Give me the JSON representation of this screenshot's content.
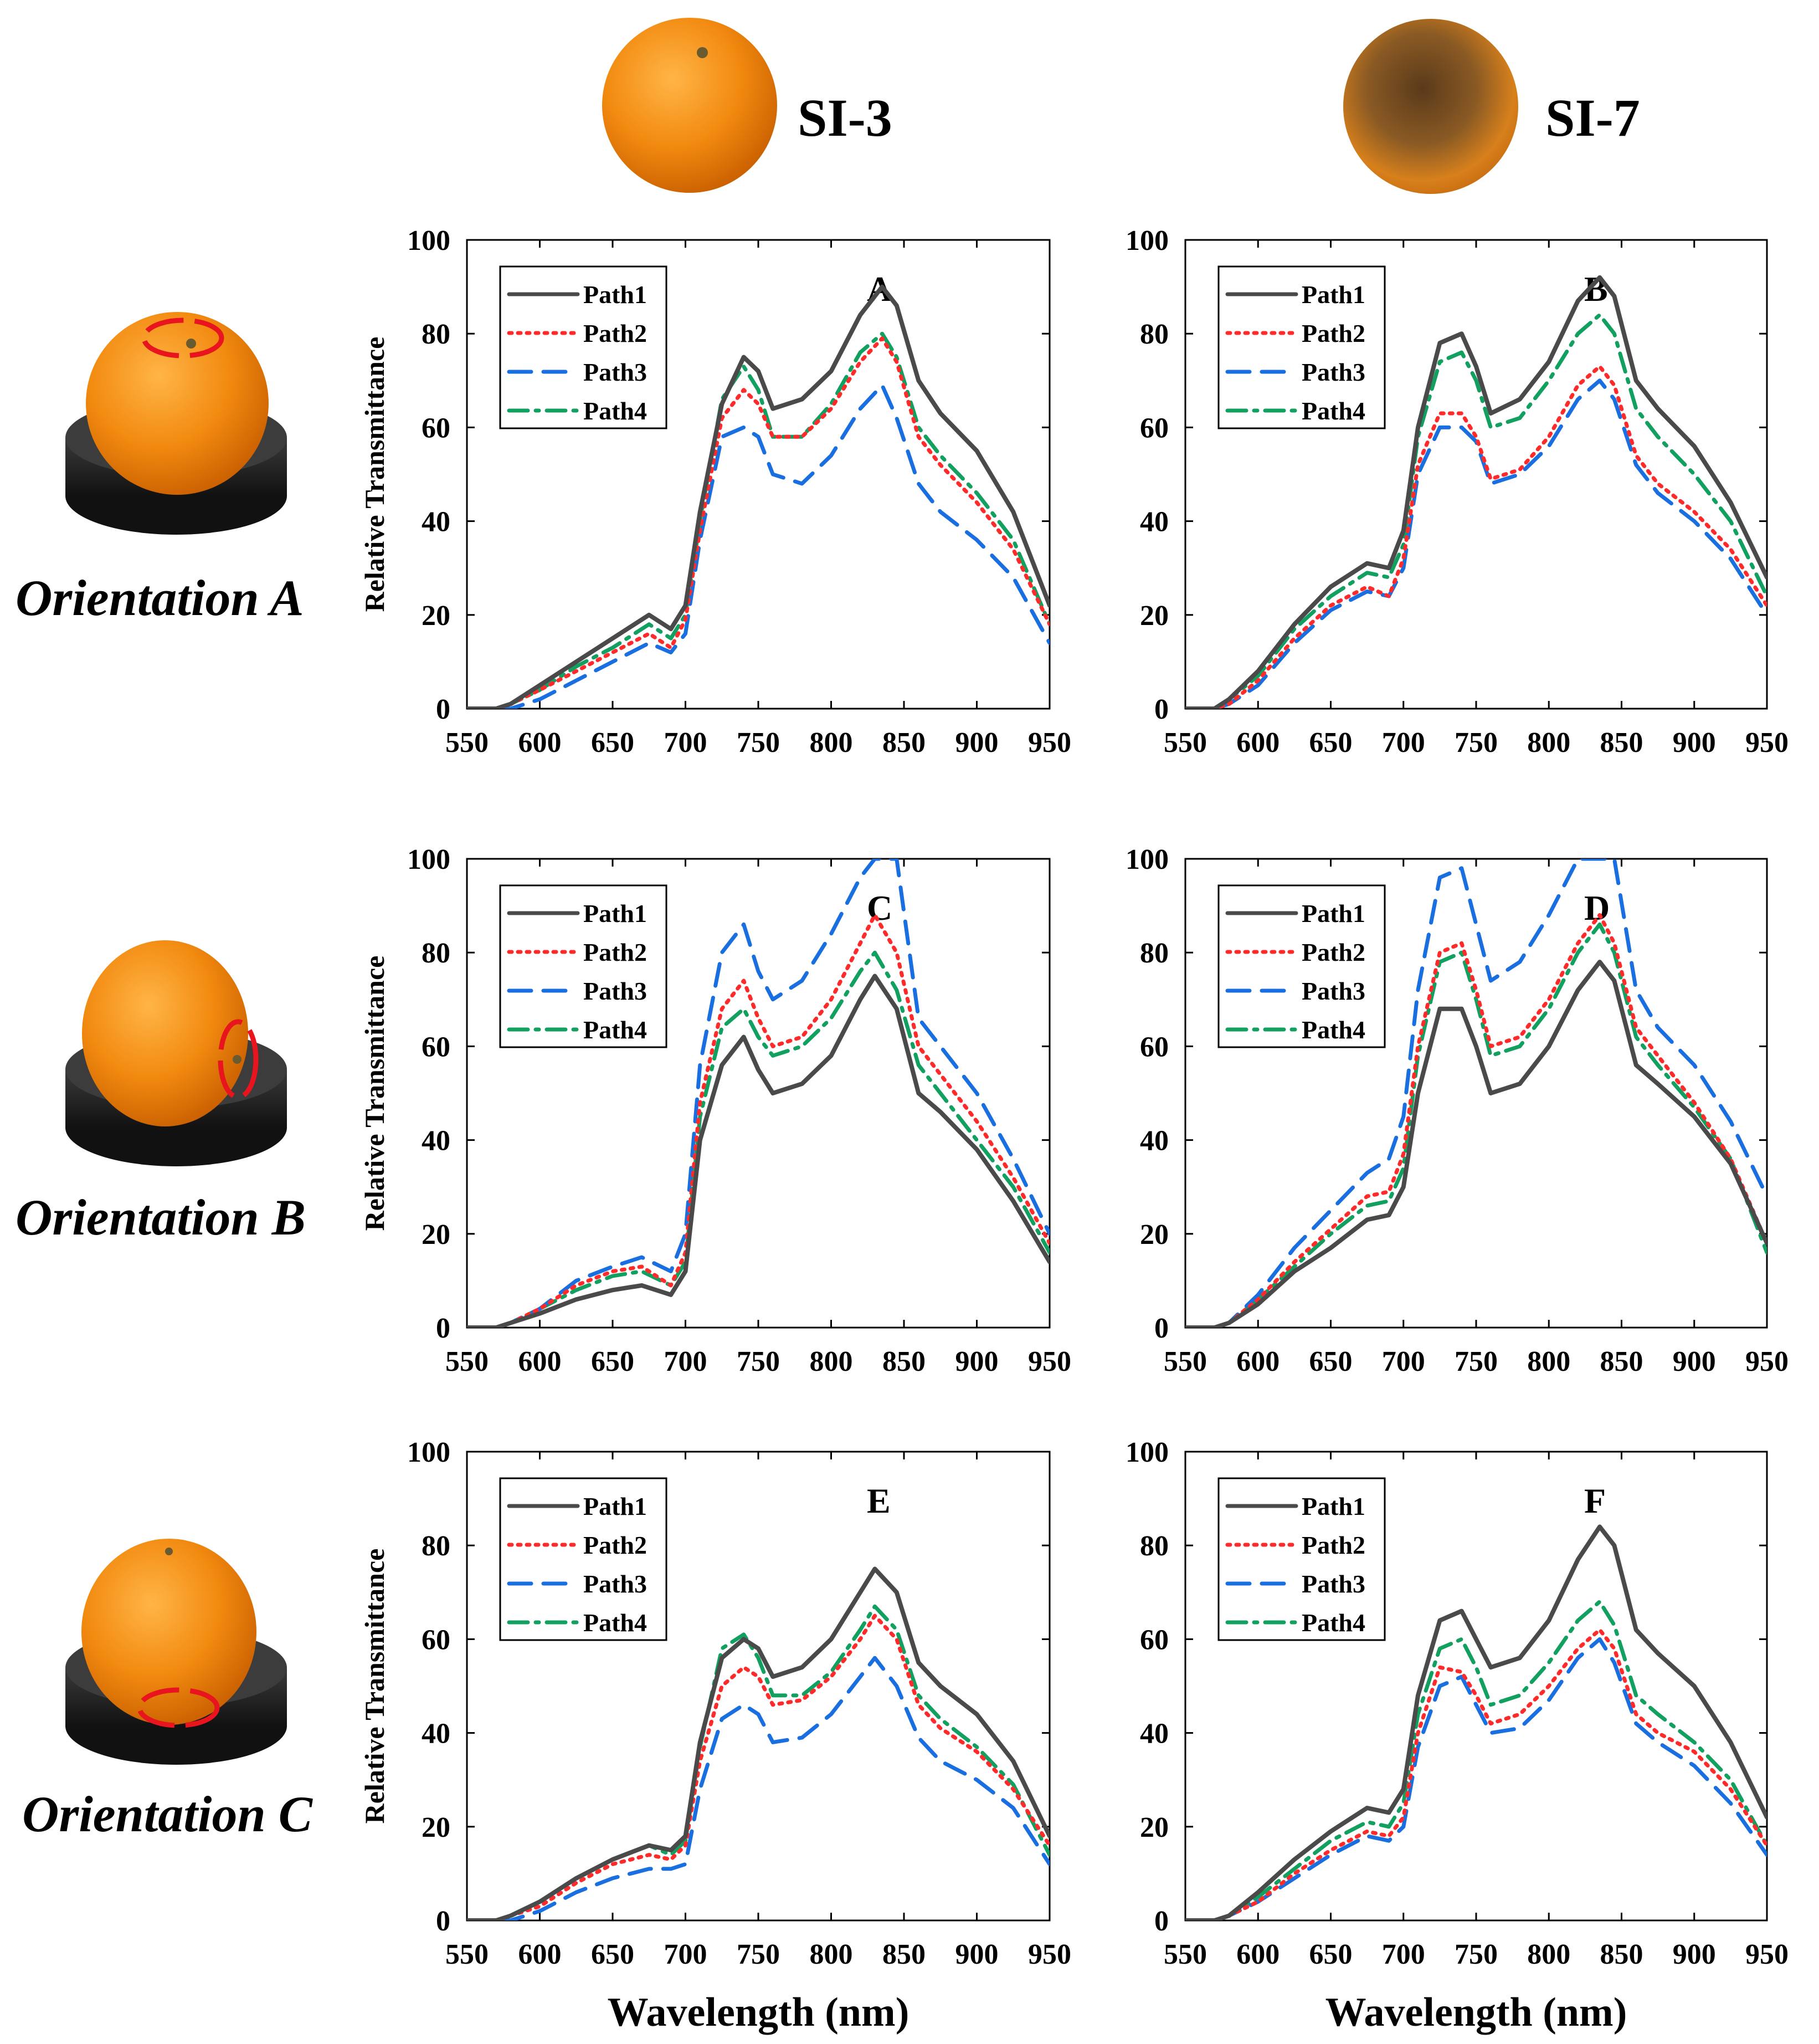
{
  "header": {
    "col1": "SI-3",
    "col2": "SI-7"
  },
  "orientations": [
    "Orientation A",
    "Orientation B",
    "Orientation C"
  ],
  "colors": {
    "Path1": "#4a4a4a",
    "Path2": "#ff2a2a",
    "Path3": "#1a6fe0",
    "Path4": "#12a060",
    "orange": "#f28a10",
    "stand": "#2b2b2b",
    "marker": "#e8141e"
  },
  "chart_data": [
    {
      "type": "line",
      "panel": "A",
      "xlabel": "",
      "ylabel": "Relative Transmittance",
      "xlim": [
        550,
        950
      ],
      "ylim": [
        0,
        100
      ],
      "xticks": [
        550,
        600,
        650,
        700,
        750,
        800,
        850,
        900,
        950
      ],
      "yticks": [
        0,
        20,
        40,
        60,
        80,
        100
      ],
      "legend": [
        "Path1",
        "Path2",
        "Path3",
        "Path4"
      ],
      "x": [
        550,
        570,
        580,
        600,
        625,
        650,
        675,
        690,
        700,
        710,
        725,
        740,
        750,
        760,
        780,
        800,
        820,
        835,
        845,
        860,
        875,
        900,
        925,
        950
      ],
      "series": [
        {
          "name": "Path1",
          "values": [
            0,
            0,
            1,
            5,
            10,
            15,
            20,
            17,
            22,
            42,
            65,
            75,
            72,
            64,
            66,
            72,
            84,
            90,
            86,
            70,
            63,
            55,
            42,
            22
          ]
        },
        {
          "name": "Path2",
          "values": [
            0,
            0,
            1,
            4,
            8,
            12,
            16,
            13,
            19,
            38,
            62,
            68,
            65,
            58,
            58,
            64,
            74,
            79,
            74,
            58,
            52,
            44,
            34,
            18
          ]
        },
        {
          "name": "Path3",
          "values": [
            0,
            0,
            0,
            2,
            6,
            10,
            14,
            12,
            16,
            36,
            58,
            60,
            58,
            50,
            48,
            54,
            64,
            69,
            62,
            48,
            42,
            36,
            28,
            14
          ]
        },
        {
          "name": "Path4",
          "values": [
            0,
            0,
            1,
            4,
            9,
            13,
            18,
            15,
            20,
            40,
            66,
            73,
            68,
            58,
            58,
            65,
            76,
            80,
            75,
            60,
            54,
            46,
            36,
            18
          ]
        }
      ]
    },
    {
      "type": "line",
      "panel": "B",
      "xlabel": "",
      "ylabel": "",
      "xlim": [
        550,
        950
      ],
      "ylim": [
        0,
        100
      ],
      "xticks": [
        550,
        600,
        650,
        700,
        750,
        800,
        850,
        900,
        950
      ],
      "yticks": [
        0,
        20,
        40,
        60,
        80,
        100
      ],
      "legend": [
        "Path1",
        "Path2",
        "Path3",
        "Path4"
      ],
      "x": [
        550,
        570,
        580,
        600,
        625,
        650,
        675,
        690,
        700,
        710,
        725,
        740,
        750,
        760,
        780,
        800,
        820,
        835,
        845,
        860,
        875,
        900,
        925,
        950
      ],
      "series": [
        {
          "name": "Path1",
          "values": [
            0,
            0,
            2,
            8,
            18,
            26,
            31,
            30,
            38,
            60,
            78,
            80,
            73,
            63,
            66,
            74,
            87,
            92,
            88,
            70,
            64,
            56,
            44,
            28
          ]
        },
        {
          "name": "Path2",
          "values": [
            0,
            0,
            1,
            6,
            15,
            22,
            26,
            24,
            32,
            52,
            63,
            63,
            58,
            49,
            51,
            58,
            69,
            73,
            69,
            54,
            48,
            42,
            34,
            22
          ]
        },
        {
          "name": "Path3",
          "values": [
            0,
            0,
            1,
            5,
            14,
            21,
            25,
            24,
            30,
            50,
            60,
            60,
            57,
            48,
            50,
            56,
            66,
            70,
            66,
            52,
            46,
            40,
            32,
            20
          ]
        },
        {
          "name": "Path4",
          "values": [
            0,
            0,
            2,
            7,
            17,
            24,
            29,
            28,
            35,
            58,
            74,
            76,
            70,
            60,
            62,
            70,
            80,
            84,
            80,
            64,
            58,
            50,
            40,
            24
          ]
        }
      ]
    },
    {
      "type": "line",
      "panel": "C",
      "xlabel": "",
      "ylabel": "Relative Transmittance",
      "xlim": [
        550,
        950
      ],
      "ylim": [
        0,
        100
      ],
      "xticks": [
        550,
        600,
        650,
        700,
        750,
        800,
        850,
        900,
        950
      ],
      "yticks": [
        0,
        20,
        40,
        60,
        80,
        100
      ],
      "legend": [
        "Path1",
        "Path2",
        "Path3",
        "Path4"
      ],
      "x": [
        550,
        570,
        580,
        600,
        625,
        650,
        670,
        690,
        700,
        710,
        725,
        740,
        750,
        760,
        780,
        800,
        820,
        830,
        845,
        860,
        875,
        900,
        925,
        950
      ],
      "series": [
        {
          "name": "Path1",
          "values": [
            0,
            0,
            1,
            3,
            6,
            8,
            9,
            7,
            12,
            40,
            56,
            62,
            55,
            50,
            52,
            58,
            70,
            75,
            68,
            50,
            46,
            38,
            27,
            14
          ]
        },
        {
          "name": "Path2",
          "values": [
            0,
            0,
            1,
            4,
            9,
            12,
            13,
            9,
            16,
            48,
            68,
            74,
            66,
            60,
            62,
            70,
            82,
            88,
            80,
            60,
            54,
            44,
            32,
            18
          ]
        },
        {
          "name": "Path3",
          "values": [
            0,
            0,
            1,
            4,
            10,
            13,
            15,
            12,
            20,
            56,
            80,
            86,
            76,
            70,
            74,
            84,
            96,
            100,
            100,
            66,
            60,
            50,
            36,
            20
          ]
        },
        {
          "name": "Path4",
          "values": [
            0,
            0,
            1,
            4,
            8,
            11,
            12,
            9,
            14,
            45,
            64,
            68,
            62,
            58,
            60,
            66,
            76,
            80,
            72,
            56,
            50,
            40,
            30,
            16
          ]
        }
      ]
    },
    {
      "type": "line",
      "panel": "D",
      "xlabel": "",
      "ylabel": "",
      "xlim": [
        550,
        950
      ],
      "ylim": [
        0,
        100
      ],
      "xticks": [
        550,
        600,
        650,
        700,
        750,
        800,
        850,
        900,
        950
      ],
      "yticks": [
        0,
        20,
        40,
        60,
        80,
        100
      ],
      "legend": [
        "Path1",
        "Path2",
        "Path3",
        "Path4"
      ],
      "x": [
        550,
        570,
        580,
        600,
        625,
        650,
        675,
        690,
        700,
        710,
        725,
        740,
        750,
        760,
        780,
        800,
        820,
        835,
        845,
        860,
        875,
        900,
        925,
        950
      ],
      "series": [
        {
          "name": "Path1",
          "values": [
            0,
            0,
            1,
            5,
            12,
            17,
            23,
            24,
            30,
            50,
            68,
            68,
            60,
            50,
            52,
            60,
            72,
            78,
            74,
            56,
            52,
            45,
            35,
            18
          ]
        },
        {
          "name": "Path2",
          "values": [
            0,
            0,
            1,
            6,
            14,
            21,
            28,
            29,
            37,
            60,
            80,
            82,
            72,
            60,
            62,
            70,
            82,
            88,
            82,
            64,
            58,
            48,
            36,
            18
          ]
        },
        {
          "name": "Path3",
          "values": [
            0,
            0,
            1,
            7,
            17,
            25,
            33,
            36,
            45,
            72,
            96,
            98,
            86,
            74,
            78,
            88,
            100,
            100,
            100,
            72,
            64,
            56,
            44,
            28
          ]
        },
        {
          "name": "Path4",
          "values": [
            0,
            0,
            1,
            6,
            13,
            20,
            26,
            27,
            34,
            58,
            78,
            80,
            70,
            58,
            60,
            68,
            80,
            86,
            80,
            62,
            56,
            47,
            36,
            16
          ]
        }
      ]
    },
    {
      "type": "line",
      "panel": "E",
      "xlabel": "Wavelength (nm)",
      "ylabel": "Relative Transmittance",
      "xlim": [
        550,
        950
      ],
      "ylim": [
        0,
        100
      ],
      "xticks": [
        550,
        600,
        650,
        700,
        750,
        800,
        850,
        900,
        950
      ],
      "yticks": [
        0,
        20,
        40,
        60,
        80,
        100
      ],
      "legend": [
        "Path1",
        "Path2",
        "Path3",
        "Path4"
      ],
      "x": [
        550,
        570,
        580,
        600,
        625,
        650,
        675,
        690,
        700,
        710,
        725,
        740,
        750,
        760,
        780,
        800,
        820,
        830,
        845,
        860,
        875,
        900,
        925,
        950
      ],
      "series": [
        {
          "name": "Path1",
          "values": [
            0,
            0,
            1,
            4,
            9,
            13,
            16,
            15,
            18,
            38,
            56,
            60,
            58,
            52,
            54,
            60,
            70,
            75,
            70,
            55,
            50,
            44,
            34,
            18
          ]
        },
        {
          "name": "Path2",
          "values": [
            0,
            0,
            1,
            3,
            8,
            12,
            14,
            13,
            16,
            34,
            50,
            54,
            52,
            46,
            47,
            52,
            60,
            65,
            60,
            46,
            41,
            36,
            28,
            16
          ]
        },
        {
          "name": "Path3",
          "values": [
            0,
            0,
            0,
            2,
            6,
            9,
            11,
            11,
            12,
            28,
            43,
            46,
            44,
            38,
            39,
            44,
            52,
            56,
            50,
            39,
            34,
            30,
            24,
            12
          ]
        },
        {
          "name": "Path4",
          "values": [
            0,
            0,
            1,
            4,
            9,
            13,
            16,
            14,
            17,
            37,
            58,
            61,
            56,
            48,
            48,
            53,
            62,
            67,
            62,
            48,
            43,
            37,
            29,
            14
          ]
        }
      ]
    },
    {
      "type": "line",
      "panel": "F",
      "xlabel": "Wavelength (nm)",
      "ylabel": "",
      "xlim": [
        550,
        950
      ],
      "ylim": [
        0,
        100
      ],
      "xticks": [
        550,
        600,
        650,
        700,
        750,
        800,
        850,
        900,
        950
      ],
      "yticks": [
        0,
        20,
        40,
        60,
        80,
        100
      ],
      "legend": [
        "Path1",
        "Path2",
        "Path3",
        "Path4"
      ],
      "x": [
        550,
        570,
        580,
        600,
        625,
        650,
        675,
        690,
        700,
        710,
        725,
        740,
        750,
        760,
        780,
        800,
        820,
        835,
        845,
        860,
        875,
        900,
        925,
        950
      ],
      "series": [
        {
          "name": "Path1",
          "values": [
            0,
            0,
            1,
            6,
            13,
            19,
            24,
            23,
            28,
            48,
            64,
            66,
            60,
            54,
            56,
            64,
            77,
            84,
            80,
            62,
            57,
            50,
            38,
            22
          ]
        },
        {
          "name": "Path2",
          "values": [
            0,
            0,
            1,
            4,
            10,
            15,
            19,
            18,
            22,
            40,
            54,
            53,
            48,
            42,
            44,
            50,
            58,
            62,
            58,
            44,
            40,
            36,
            28,
            16
          ]
        },
        {
          "name": "Path3",
          "values": [
            0,
            0,
            1,
            4,
            9,
            14,
            18,
            17,
            20,
            37,
            50,
            52,
            46,
            40,
            41,
            47,
            56,
            60,
            55,
            42,
            38,
            33,
            25,
            14
          ]
        },
        {
          "name": "Path4",
          "values": [
            0,
            0,
            1,
            5,
            11,
            17,
            21,
            20,
            25,
            44,
            58,
            60,
            54,
            46,
            48,
            55,
            64,
            68,
            63,
            48,
            44,
            38,
            30,
            16
          ]
        }
      ]
    }
  ]
}
